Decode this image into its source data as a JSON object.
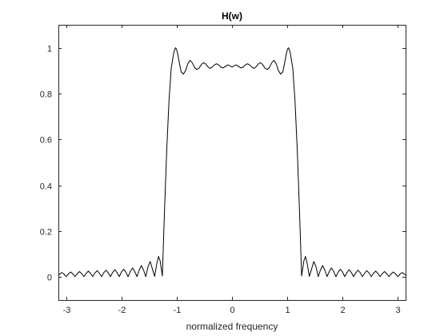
{
  "chart_data": {
    "type": "line",
    "title": "H(w)",
    "xlabel": "normalized frequency",
    "ylabel": "",
    "xlim": [
      -3.1416,
      3.1416
    ],
    "ylim": [
      -0.1,
      1.1
    ],
    "xticks": [
      -3,
      -2,
      -1,
      0,
      1,
      2,
      3
    ],
    "xtick_labels": [
      "-3",
      "-2",
      "-1",
      "0",
      "1",
      "2",
      "3"
    ],
    "yticks": [
      0,
      0.2,
      0.4,
      0.6,
      0.8,
      1
    ],
    "ytick_labels": [
      "0",
      "0.2",
      "0.4",
      "0.6",
      "0.8",
      "1"
    ],
    "grid": false,
    "colors": {
      "line": "#000000",
      "axes": "#262626",
      "background": "#ffffff"
    },
    "series": [
      {
        "x": [
          -3.14,
          -3.12,
          -3.08,
          -3.04,
          -3.0,
          -2.96,
          -2.92,
          -2.88,
          -2.84,
          -2.8,
          -2.76,
          -2.72,
          -2.68,
          -2.64,
          -2.6,
          -2.56,
          -2.52,
          -2.48,
          -2.44,
          -2.4,
          -2.36,
          -2.32,
          -2.28,
          -2.24,
          -2.2,
          -2.16,
          -2.12,
          -2.08,
          -2.04,
          -2.0,
          -1.96,
          -1.92,
          -1.88,
          -1.84,
          -1.8,
          -1.76,
          -1.72,
          -1.68,
          -1.64,
          -1.6,
          -1.56,
          -1.52,
          -1.48,
          -1.44,
          -1.4,
          -1.36,
          -1.33,
          -1.3,
          -1.26,
          -1.22,
          -1.18,
          -1.14,
          -1.1,
          -1.06,
          -1.04,
          -1.02,
          -1.0,
          -0.98,
          -0.95,
          -0.92,
          -0.88,
          -0.84,
          -0.8,
          -0.76,
          -0.72,
          -0.68,
          -0.64,
          -0.6,
          -0.56,
          -0.52,
          -0.48,
          -0.44,
          -0.4,
          -0.36,
          -0.32,
          -0.28,
          -0.24,
          -0.2,
          -0.16,
          -0.12,
          -0.08,
          -0.04,
          0.0,
          0.04,
          0.08,
          0.12,
          0.16,
          0.2,
          0.24,
          0.28,
          0.32,
          0.36,
          0.4,
          0.44,
          0.48,
          0.52,
          0.56,
          0.6,
          0.64,
          0.68,
          0.72,
          0.76,
          0.8,
          0.84,
          0.88,
          0.92,
          0.95,
          0.98,
          1.0,
          1.02,
          1.04,
          1.06,
          1.1,
          1.14,
          1.18,
          1.22,
          1.26,
          1.3,
          1.33,
          1.36,
          1.4,
          1.44,
          1.48,
          1.52,
          1.56,
          1.6,
          1.64,
          1.68,
          1.72,
          1.76,
          1.8,
          1.84,
          1.88,
          1.92,
          1.96,
          2.0,
          2.04,
          2.08,
          2.12,
          2.16,
          2.2,
          2.24,
          2.28,
          2.32,
          2.36,
          2.4,
          2.44,
          2.48,
          2.52,
          2.56,
          2.6,
          2.64,
          2.68,
          2.72,
          2.76,
          2.8,
          2.84,
          2.88,
          2.92,
          2.96,
          3.0,
          3.04,
          3.08,
          3.12,
          3.14
        ],
        "y": [
          0.008,
          0.012,
          0.02,
          0.013,
          0.002,
          0.014,
          0.022,
          0.014,
          0.002,
          0.015,
          0.024,
          0.015,
          0.002,
          0.016,
          0.026,
          0.016,
          0.002,
          0.018,
          0.028,
          0.017,
          0.002,
          0.019,
          0.03,
          0.018,
          0.002,
          0.02,
          0.032,
          0.019,
          0.002,
          0.022,
          0.034,
          0.021,
          0.002,
          0.025,
          0.04,
          0.024,
          0.002,
          0.03,
          0.05,
          0.03,
          0.002,
          0.045,
          0.068,
          0.035,
          0.003,
          0.06,
          0.09,
          0.07,
          0.005,
          0.3,
          0.56,
          0.77,
          0.91,
          0.97,
          0.99,
          1.0,
          0.99,
          0.97,
          0.93,
          0.895,
          0.885,
          0.9,
          0.93,
          0.945,
          0.935,
          0.915,
          0.905,
          0.91,
          0.925,
          0.935,
          0.93,
          0.918,
          0.91,
          0.915,
          0.925,
          0.93,
          0.925,
          0.915,
          0.912,
          0.918,
          0.925,
          0.922,
          0.915,
          0.922,
          0.925,
          0.918,
          0.912,
          0.915,
          0.925,
          0.93,
          0.925,
          0.915,
          0.91,
          0.918,
          0.93,
          0.935,
          0.925,
          0.91,
          0.905,
          0.915,
          0.935,
          0.945,
          0.93,
          0.9,
          0.885,
          0.895,
          0.93,
          0.97,
          0.99,
          1.0,
          0.99,
          0.97,
          0.91,
          0.77,
          0.56,
          0.3,
          0.005,
          0.07,
          0.09,
          0.06,
          0.003,
          0.035,
          0.068,
          0.045,
          0.002,
          0.03,
          0.05,
          0.03,
          0.002,
          0.024,
          0.04,
          0.025,
          0.002,
          0.021,
          0.034,
          0.022,
          0.002,
          0.019,
          0.032,
          0.02,
          0.002,
          0.018,
          0.03,
          0.019,
          0.002,
          0.017,
          0.028,
          0.018,
          0.002,
          0.016,
          0.026,
          0.016,
          0.002,
          0.015,
          0.024,
          0.015,
          0.002,
          0.014,
          0.022,
          0.014,
          0.002,
          0.013,
          0.02,
          0.012,
          0.008
        ]
      }
    ]
  }
}
